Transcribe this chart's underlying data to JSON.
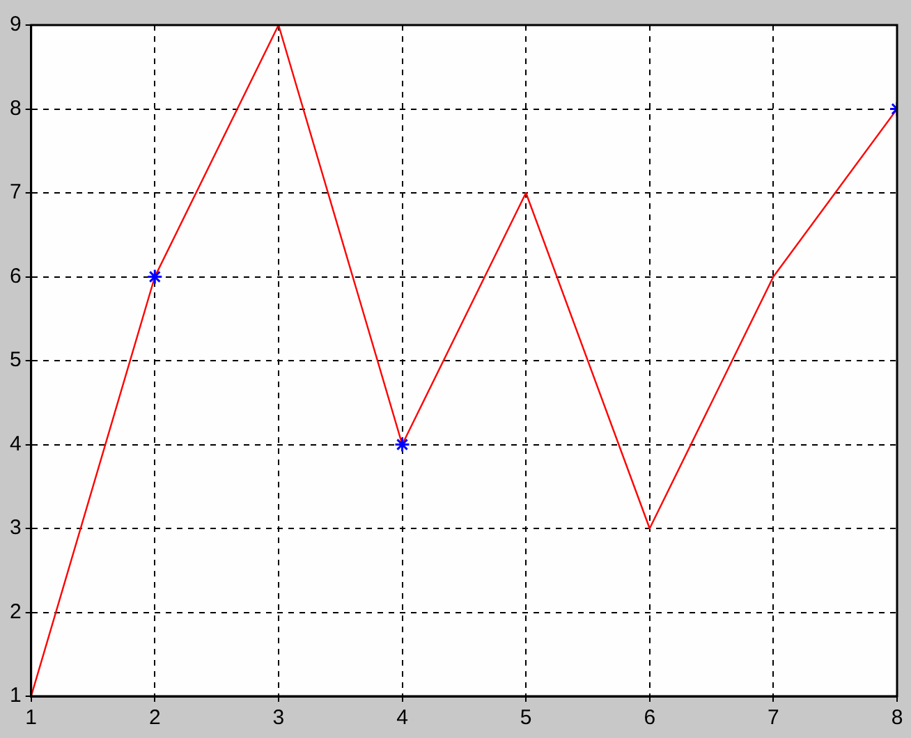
{
  "chart_data": {
    "type": "line",
    "x": [
      1,
      2,
      3,
      4,
      5,
      6,
      7,
      8
    ],
    "series": [
      {
        "color": "#ff0000",
        "values": [
          1,
          6,
          9,
          4,
          7,
          3,
          6,
          8
        ],
        "marker": "none",
        "line_style": "solid"
      },
      {
        "type": "scatter",
        "color": "#0000ff",
        "x": [
          2,
          4,
          8
        ],
        "values": [
          6,
          4,
          8
        ],
        "marker": "cross"
      }
    ],
    "xlim": [
      1,
      8
    ],
    "ylim": [
      1,
      9
    ],
    "xticks": [
      1,
      2,
      3,
      4,
      5,
      6,
      7,
      8
    ],
    "yticks": [
      1,
      2,
      3,
      4,
      5,
      6,
      7,
      8,
      9
    ],
    "grid": true,
    "legend": false
  }
}
